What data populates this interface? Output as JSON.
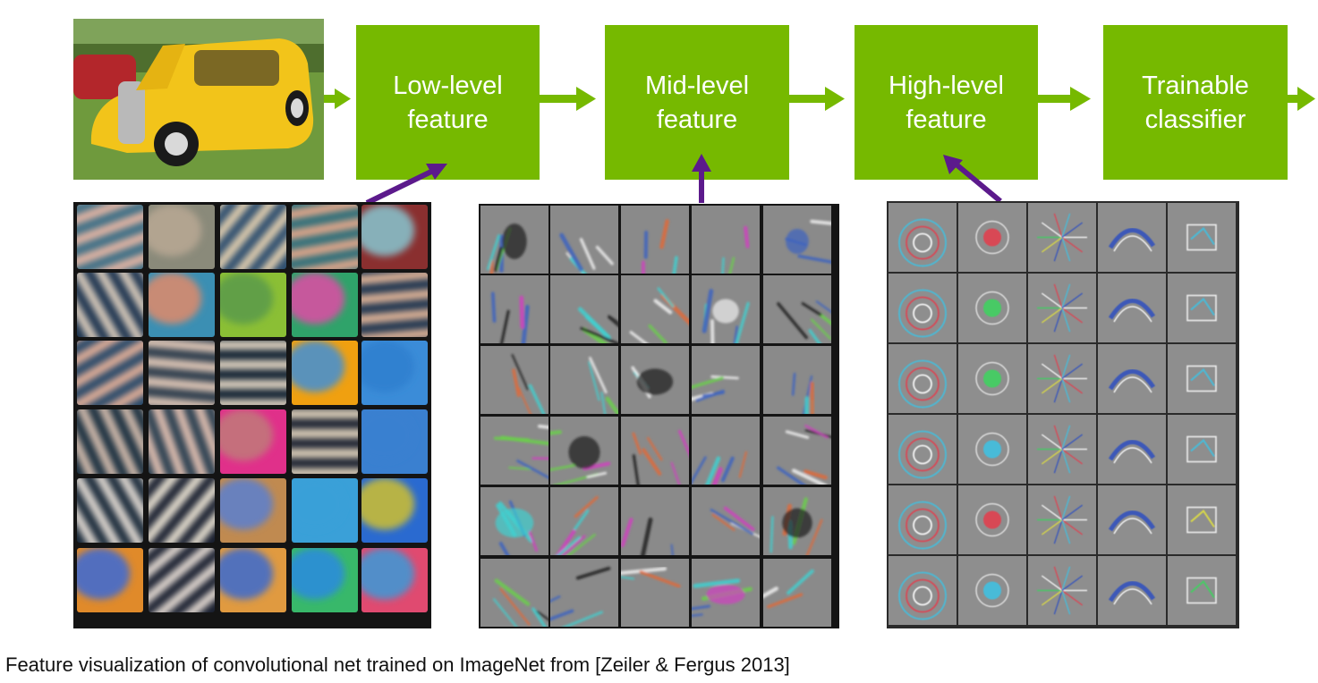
{
  "pipeline": {
    "stages": [
      {
        "label": "Low-level\nfeature"
      },
      {
        "label": "Mid-level\nfeature"
      },
      {
        "label": "High-level\nfeature"
      },
      {
        "label": "Trainable\nclassifier"
      }
    ],
    "box_color": "#76b900",
    "pointer_arrow_color": "#5c1a8c"
  },
  "input_image": {
    "subject": "yellow vintage car on grass"
  },
  "panels": {
    "low": {
      "grid": "5x6",
      "style": "blurry edge and color filters"
    },
    "mid": {
      "grid": "5x6",
      "style": "textured patch filters"
    },
    "high": {
      "grid": "5x6",
      "style": "object part filters"
    }
  },
  "caption": "Feature visualization of convolutional net trained on ImageNet from [Zeiler & Fergus 2013]"
}
